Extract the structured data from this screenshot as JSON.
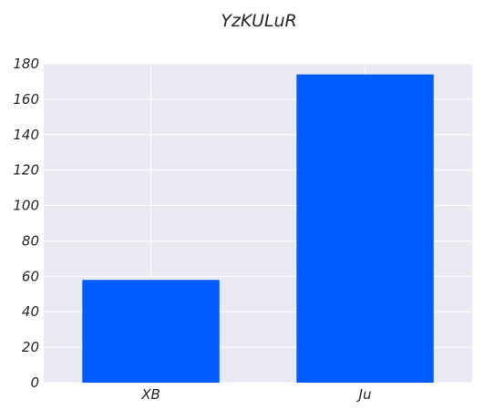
{
  "chart_data": {
    "type": "bar",
    "title": "YzKULuR",
    "xlabel": "",
    "ylabel": "",
    "categories": [
      "XB",
      "Ju"
    ],
    "values": [
      58,
      174
    ],
    "ylim": [
      0,
      180
    ],
    "yticks": [
      0,
      20,
      40,
      60,
      80,
      100,
      120,
      140,
      160,
      180
    ],
    "grid": true,
    "legend": "none",
    "colors": {
      "bar": "#005cff",
      "plot_background": "#e9e9f1",
      "grid": "#ffffff",
      "text": "#262626"
    }
  }
}
